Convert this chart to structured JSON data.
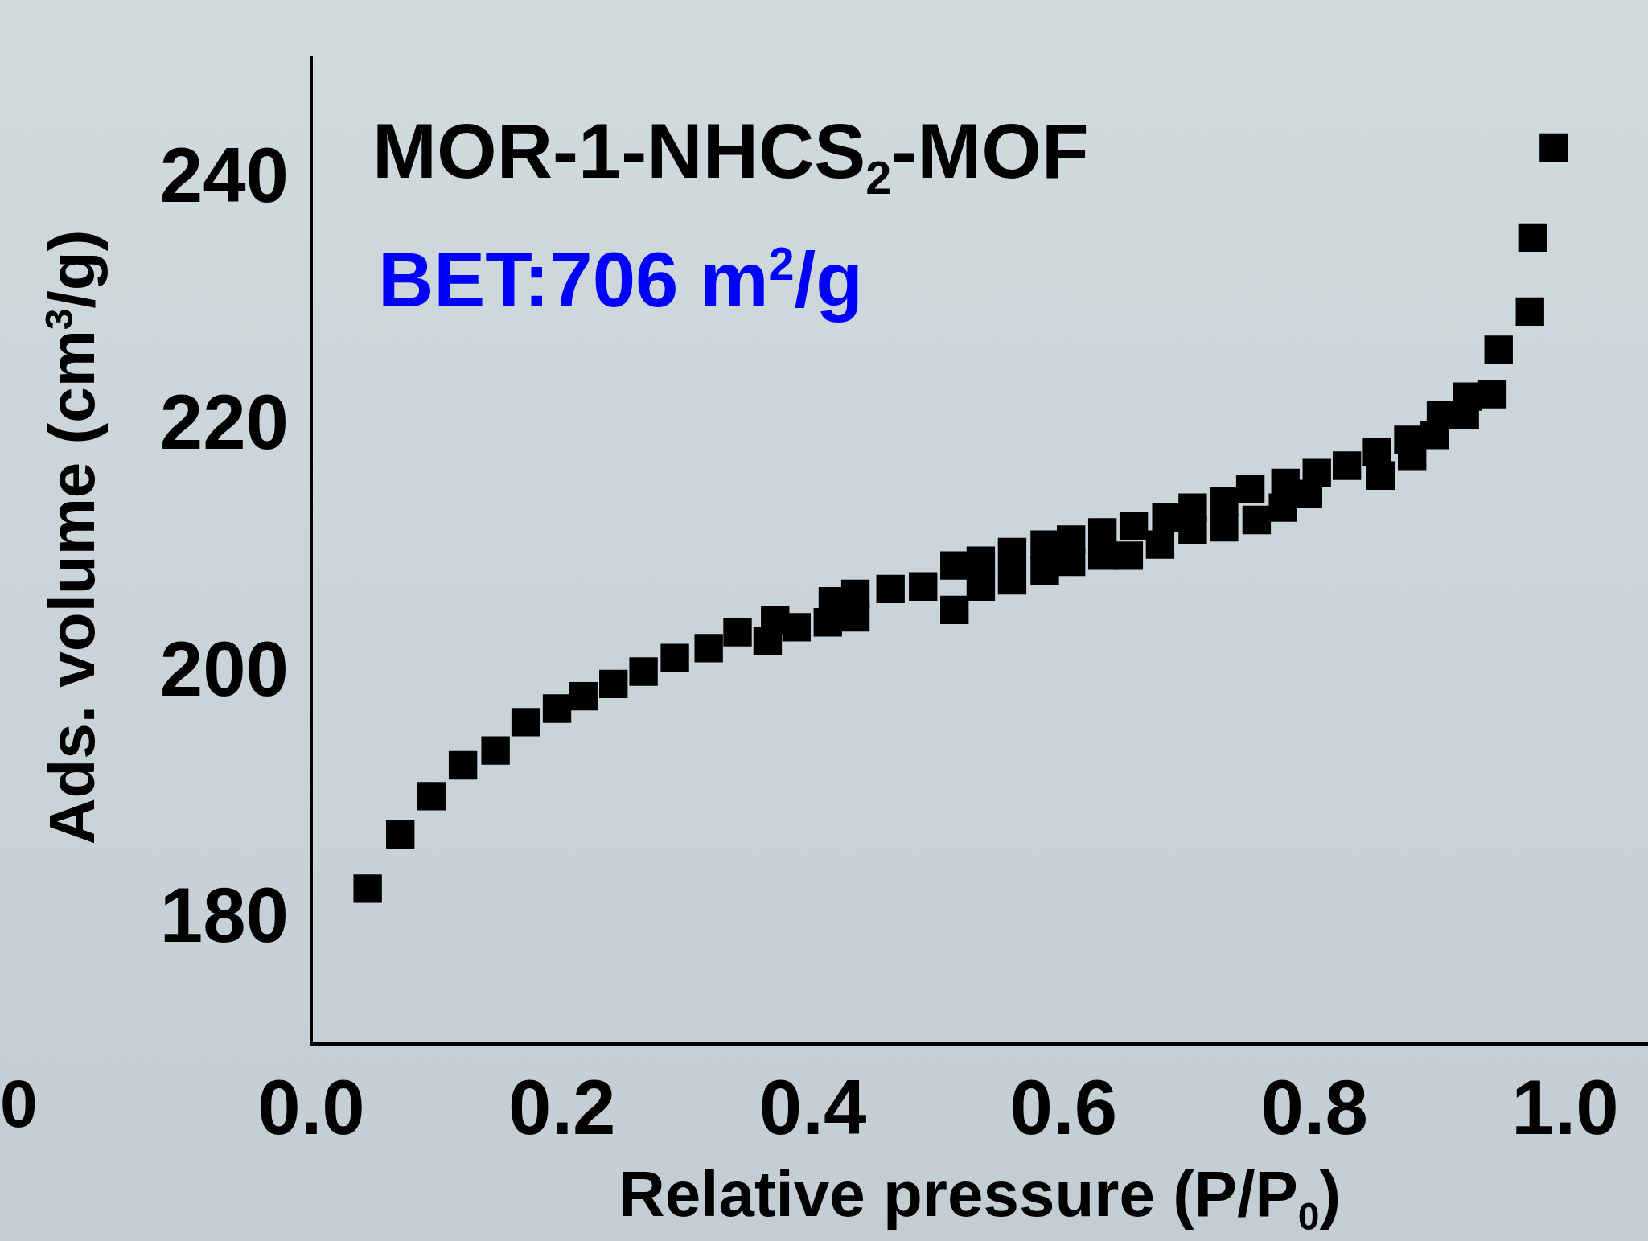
{
  "chart_data": {
    "type": "scatter",
    "xlabel": "Relative pressure (P/P$_{0}$)",
    "ylabel": "Ads. volume (cm$^{3}$/g)",
    "annotations": [
      "MOR-1-NHCS$_{2}$-MOF",
      "BET:706 m$^{2}$/g",
      "0"
    ],
    "xlim": [
      0,
      1.07
    ],
    "xticks": [
      {
        "value": 0,
        "label": "0.0"
      },
      0.2,
      0.4,
      0.6,
      {
        "value": 0.8,
        "label": "0.8"
      },
      {
        "value": 1,
        "label": "1.0"
      }
    ],
    "ylim": [
      170,
      250
    ],
    "yticks": [
      180,
      200,
      220,
      240
    ],
    "grid": false,
    "marker": "square",
    "series": [
      {
        "color": "#000000",
        "x": [
          0.045,
          0.071,
          0.096,
          0.121,
          0.147,
          0.171,
          0.196,
          0.217,
          0.241,
          0.265,
          0.29,
          0.317,
          0.34,
          0.364,
          0.37,
          0.387,
          0.412,
          0.416,
          0.434,
          0.434,
          0.462,
          0.488,
          0.513,
          0.513,
          0.534,
          0.534,
          0.559,
          0.559,
          0.585,
          0.585,
          0.606,
          0.606,
          0.631,
          0.631,
          0.652,
          0.656,
          0.677,
          0.682,
          0.703,
          0.703,
          0.728,
          0.728,
          0.754,
          0.749,
          0.775,
          0.777,
          0.795,
          0.802,
          0.826,
          0.853,
          0.85,
          0.878,
          0.875,
          0.896,
          0.901,
          0.92,
          0.922,
          0.942,
          0.947,
          0.972,
          0.974,
          0.991
        ],
        "values": [
          182.6,
          187.0,
          190.1,
          192.6,
          193.8,
          196.1,
          197.2,
          198.2,
          199.2,
          200.2,
          201.3,
          202.1,
          203.4,
          202.7,
          204.4,
          203.8,
          204.2,
          205.9,
          204.6,
          206.5,
          206.9,
          207.1,
          205.2,
          208.8,
          207.1,
          209.2,
          207.6,
          209.9,
          208.4,
          210.5,
          209.1,
          210.9,
          209.6,
          211.5,
          209.6,
          212.0,
          210.5,
          212.7,
          211.7,
          213.5,
          211.9,
          214.0,
          212.5,
          215.0,
          213.5,
          215.5,
          214.6,
          216.3,
          216.9,
          216.1,
          218.0,
          217.7,
          219.0,
          219.4,
          221.0,
          221.0,
          222.5,
          222.7,
          226.3,
          229.4,
          235.4,
          242.7
        ]
      }
    ]
  }
}
